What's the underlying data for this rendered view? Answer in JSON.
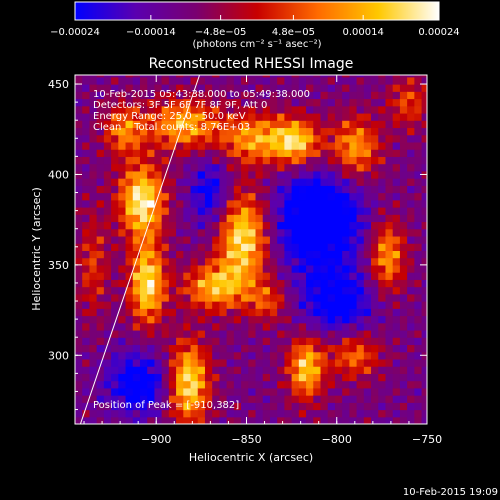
{
  "chart_data": {
    "type": "heatmap",
    "title": "Reconstructed RHESSI Image",
    "xlabel": "Heliocentric X (arcsec)",
    "ylabel": "Heliocentric Y (arcsec)",
    "xlim": [
      -945,
      -750
    ],
    "ylim": [
      262,
      455
    ],
    "x_ticks": [
      -900,
      -850,
      -800,
      -750
    ],
    "y_ticks": [
      300,
      350,
      400,
      450
    ],
    "x_tick_labels": [
      "−900",
      "−850",
      "−800",
      "−750"
    ],
    "y_tick_labels": [
      "300",
      "350",
      "400",
      "450"
    ],
    "colorbar": {
      "range": [
        -0.00024,
        0.00024
      ],
      "ticks": [
        -0.00024,
        -0.00014,
        -4.8e-05,
        4.8e-05,
        0.00014,
        0.00024
      ],
      "tick_labels": [
        "−0.00024",
        "−0.00014",
        "−4.8e−05",
        "4.8e−05",
        "0.00014",
        "0.00024"
      ],
      "unit_label": "(photons cm⁻² s⁻¹ asec⁻²)",
      "colors": [
        "#0000ff",
        "#5a00b0",
        "#7a0070",
        "#c80000",
        "#ff6a00",
        "#ffc800",
        "#ffffff"
      ]
    },
    "annotations": [
      "10-Feb-2015 05:43:38.000 to 05:49:38.000",
      "Detectors: 3F 5F 6F 7F 8F 9F, Att 0",
      "Energy Range: 25.0 - 50.0 keV",
      "Clean    Total counts: 8.76E+03"
    ],
    "peak_label": "Position of Peak = [-910,382]",
    "limb_line": [
      [
        -942,
        262
      ],
      [
        -876,
        455
      ]
    ],
    "emission_peaks": [
      {
        "x": -908,
        "y": 386,
        "amp": 1.0,
        "sx": 9,
        "sy": 14
      },
      {
        "x": -905,
        "y": 340,
        "amp": 0.95,
        "sx": 7,
        "sy": 16
      },
      {
        "x": -885,
        "y": 428,
        "amp": 0.75,
        "sx": 14,
        "sy": 10
      },
      {
        "x": -918,
        "y": 425,
        "amp": 0.6,
        "sx": 8,
        "sy": 10
      },
      {
        "x": -852,
        "y": 365,
        "amp": 0.95,
        "sx": 10,
        "sy": 18
      },
      {
        "x": -868,
        "y": 338,
        "amp": 0.75,
        "sx": 12,
        "sy": 9
      },
      {
        "x": -845,
        "y": 420,
        "amp": 0.7,
        "sx": 14,
        "sy": 10
      },
      {
        "x": -822,
        "y": 418,
        "amp": 0.8,
        "sx": 9,
        "sy": 9
      },
      {
        "x": -790,
        "y": 415,
        "amp": 0.7,
        "sx": 10,
        "sy": 12
      },
      {
        "x": -772,
        "y": 355,
        "amp": 0.7,
        "sx": 7,
        "sy": 14
      },
      {
        "x": -817,
        "y": 293,
        "amp": 0.85,
        "sx": 7,
        "sy": 12
      },
      {
        "x": -790,
        "y": 300,
        "amp": 0.55,
        "sx": 10,
        "sy": 9
      },
      {
        "x": -882,
        "y": 285,
        "amp": 0.95,
        "sx": 8,
        "sy": 16
      },
      {
        "x": -935,
        "y": 350,
        "amp": 0.4,
        "sx": 6,
        "sy": 20
      },
      {
        "x": -760,
        "y": 440,
        "amp": 0.45,
        "sx": 8,
        "sy": 10
      },
      {
        "x": -838,
        "y": 330,
        "amp": 0.45,
        "sx": 8,
        "sy": 8
      }
    ],
    "emission_troughs": [
      {
        "x": -810,
        "y": 375,
        "amp": 0.9,
        "sx": 16,
        "sy": 18
      },
      {
        "x": -800,
        "y": 330,
        "amp": 0.6,
        "sx": 14,
        "sy": 12
      },
      {
        "x": -910,
        "y": 285,
        "amp": 0.6,
        "sx": 12,
        "sy": 12
      },
      {
        "x": -870,
        "y": 390,
        "amp": 0.5,
        "sx": 8,
        "sy": 14
      }
    ]
  },
  "footer": {
    "timestamp": "10-Feb-2015 19:09"
  }
}
